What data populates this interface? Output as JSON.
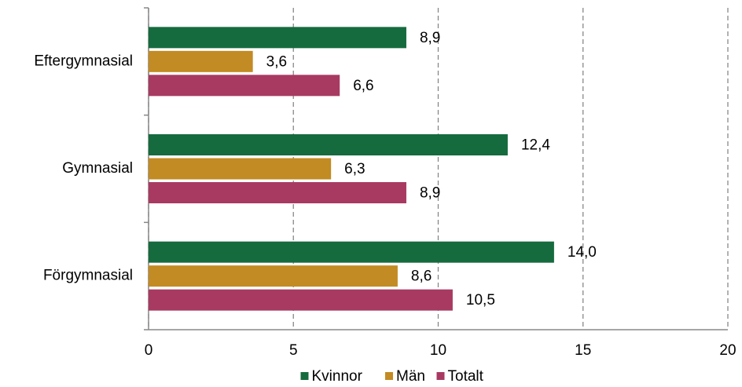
{
  "chart_data": {
    "type": "hbar",
    "categories": [
      "Eftergymnasial",
      "Gymnasial",
      "Förgymnasial"
    ],
    "series": [
      {
        "name": "Kvinnor",
        "color": "#156b3e",
        "values": [
          8.9,
          12.4,
          14.0
        ],
        "value_labels": [
          "8,9",
          "12,4",
          "14,0"
        ]
      },
      {
        "name": "Män",
        "color": "#c28b23",
        "values": [
          3.6,
          6.3,
          8.6
        ],
        "value_labels": [
          "3,6",
          "6,3",
          "8,6"
        ]
      },
      {
        "name": "Totalt",
        "color": "#a83a62",
        "values": [
          6.6,
          8.9,
          10.5
        ],
        "value_labels": [
          "6,6",
          "8,9",
          "10,5"
        ]
      }
    ],
    "xlim": [
      0,
      20
    ],
    "xticks": [
      0,
      5,
      10,
      15,
      20
    ],
    "grid": true,
    "legend": "bottom"
  }
}
